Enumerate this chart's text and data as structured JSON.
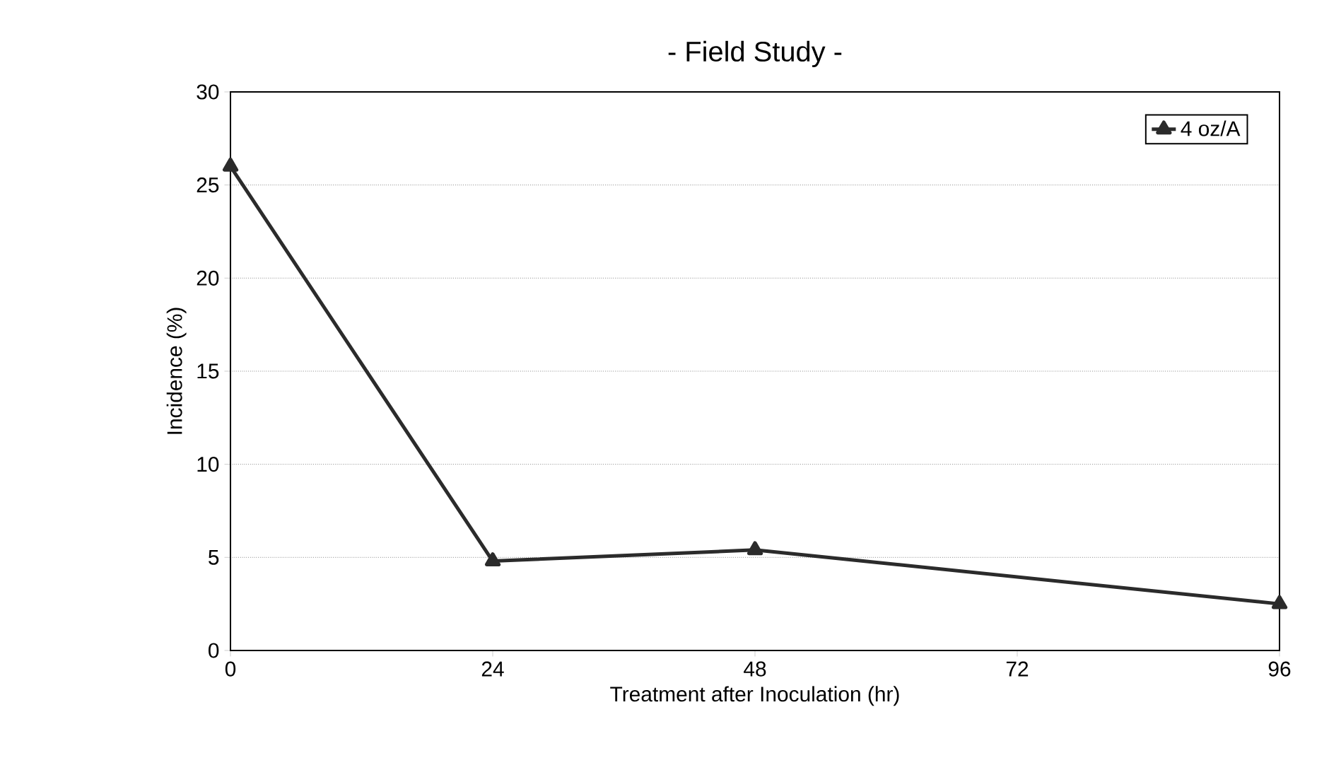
{
  "chart_data": {
    "type": "line",
    "title": "- Field Study -",
    "xlabel": "Treatment after Inoculation (hr)",
    "ylabel": "Incidence (%)",
    "x": [
      0,
      24,
      48,
      96
    ],
    "series": [
      {
        "name": "4 oz/A",
        "color": "#2b2b2b",
        "values": [
          26,
          4.8,
          5.4,
          2.5
        ]
      }
    ],
    "xlim": [
      0,
      96
    ],
    "xticks": [
      0,
      24,
      48,
      72,
      96
    ],
    "ylim": [
      0,
      30
    ],
    "yticks": [
      0,
      5,
      10,
      15,
      20,
      25,
      30
    ],
    "grid": "y",
    "legend": "top right",
    "marker": "triangle",
    "line_style": "solid"
  }
}
